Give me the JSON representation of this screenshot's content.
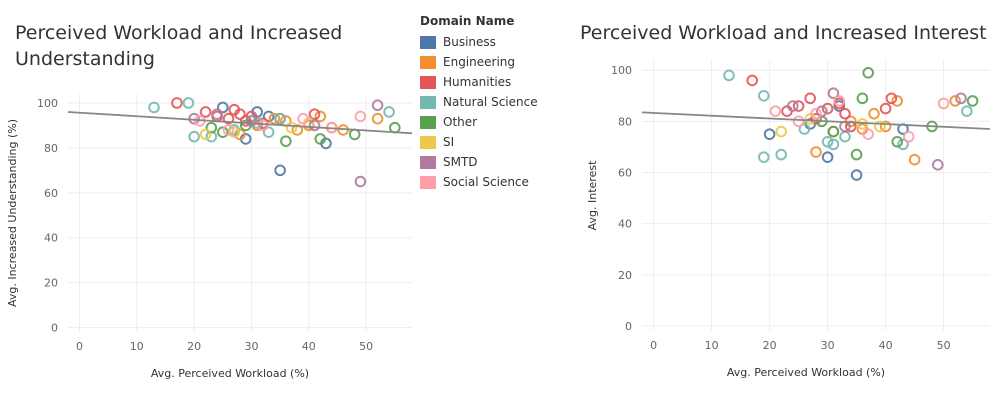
{
  "legend": {
    "title": "Domain Name",
    "items": [
      {
        "label": "Business",
        "color": "#4e79a7"
      },
      {
        "label": "Engineering",
        "color": "#f28e2b"
      },
      {
        "label": "Humanities",
        "color": "#e15759"
      },
      {
        "label": "Natural Science",
        "color": "#76b7b2"
      },
      {
        "label": "Other",
        "color": "#59a14f"
      },
      {
        "label": "SI",
        "color": "#edc948"
      },
      {
        "label": "SMTD",
        "color": "#b07aa1"
      },
      {
        "label": "Social Science",
        "color": "#ff9da7"
      }
    ]
  },
  "chart_data": [
    {
      "type": "scatter",
      "title": "Perceived Workload and Increased Understanding",
      "xlabel": "Avg. Perceived Workload (%)",
      "ylabel": "Avg. Increased Understanding (%)",
      "xlim": [
        -2,
        58
      ],
      "ylim": [
        -2,
        104
      ],
      "xticks": [
        0,
        10,
        20,
        30,
        40,
        50
      ],
      "yticks": [
        0,
        20,
        40,
        60,
        80,
        100
      ],
      "grid": true,
      "trend_line": {
        "x": [
          -2,
          58
        ],
        "y": [
          96,
          86.5
        ],
        "color": "#888888"
      },
      "series": [
        {
          "name": "Business",
          "x": [
            25,
            29,
            31,
            33,
            35,
            43
          ],
          "y": [
            98,
            84,
            96,
            94,
            70,
            82
          ]
        },
        {
          "name": "Engineering",
          "x": [
            28,
            31,
            34,
            36,
            38,
            40,
            42,
            44,
            46,
            52
          ],
          "y": [
            86,
            90,
            93,
            92,
            88,
            90,
            94,
            89,
            88,
            93
          ]
        },
        {
          "name": "Humanities",
          "x": [
            17,
            22,
            24,
            26,
            27,
            28,
            29,
            30,
            32,
            35,
            41
          ],
          "y": [
            100,
            96,
            94,
            93,
            97,
            95,
            92,
            94,
            91,
            93,
            95
          ]
        },
        {
          "name": "Natural Science",
          "x": [
            13,
            19,
            20,
            23,
            27,
            31,
            33,
            35,
            54
          ],
          "y": [
            98,
            100,
            85,
            85,
            88,
            91,
            87,
            93,
            96
          ]
        },
        {
          "name": "Other",
          "x": [
            23,
            25,
            29,
            36,
            42,
            48,
            55
          ],
          "y": [
            89,
            87,
            90,
            83,
            84,
            86,
            89
          ]
        },
        {
          "name": "SI",
          "x": [
            22,
            27,
            37,
            40
          ],
          "y": [
            86,
            87,
            89,
            91
          ]
        },
        {
          "name": "SMTD",
          "x": [
            20,
            24,
            30,
            41,
            49,
            52
          ],
          "y": [
            93,
            95,
            92,
            90,
            65,
            99
          ]
        },
        {
          "name": "Social Science",
          "x": [
            21,
            26,
            32,
            39,
            44,
            49
          ],
          "y": [
            92,
            88,
            90,
            93,
            89,
            94
          ]
        }
      ]
    },
    {
      "type": "scatter",
      "title": "Perceived Workload and Increased Interest",
      "xlabel": "Avg. Perceived Workload (%)",
      "ylabel": "Avg. Interest",
      "xlim": [
        -2,
        58
      ],
      "ylim": [
        -2,
        104
      ],
      "xticks": [
        0,
        10,
        20,
        30,
        40,
        50
      ],
      "yticks": [
        0,
        20,
        40,
        60,
        80,
        100
      ],
      "grid": true,
      "trend_line": {
        "x": [
          -2,
          58
        ],
        "y": [
          83.5,
          77
        ],
        "color": "#888888"
      },
      "series": [
        {
          "name": "Business",
          "x": [
            20,
            27,
            30,
            32,
            35,
            43
          ],
          "y": [
            75,
            79,
            66,
            86,
            59,
            77
          ]
        },
        {
          "name": "Engineering",
          "x": [
            28,
            31,
            34,
            36,
            38,
            40,
            42,
            45,
            52
          ],
          "y": [
            68,
            76,
            80,
            77,
            83,
            78,
            88,
            65,
            88
          ]
        },
        {
          "name": "Humanities",
          "x": [
            17,
            23,
            25,
            27,
            28,
            30,
            32,
            33,
            34,
            40,
            41
          ],
          "y": [
            96,
            84,
            86,
            89,
            81,
            85,
            87,
            83,
            78,
            85,
            89
          ]
        },
        {
          "name": "Natural Science",
          "x": [
            13,
            19,
            19,
            22,
            26,
            30,
            31,
            33,
            43,
            54
          ],
          "y": [
            98,
            90,
            66,
            67,
            77,
            72,
            71,
            74,
            71,
            84
          ]
        },
        {
          "name": "Other",
          "x": [
            29,
            31,
            35,
            36,
            37,
            42,
            48,
            55
          ],
          "y": [
            80,
            76,
            67,
            89,
            99,
            72,
            78,
            88
          ]
        },
        {
          "name": "SI",
          "x": [
            22,
            27,
            36,
            39
          ],
          "y": [
            76,
            81,
            79,
            78
          ]
        },
        {
          "name": "SMTD",
          "x": [
            24,
            29,
            31,
            33,
            49,
            53
          ],
          "y": [
            86,
            84,
            91,
            78,
            63,
            89
          ]
        },
        {
          "name": "Social Science",
          "x": [
            21,
            25,
            28,
            32,
            37,
            44,
            50
          ],
          "y": [
            84,
            80,
            83,
            88,
            75,
            74,
            87
          ]
        }
      ]
    }
  ]
}
